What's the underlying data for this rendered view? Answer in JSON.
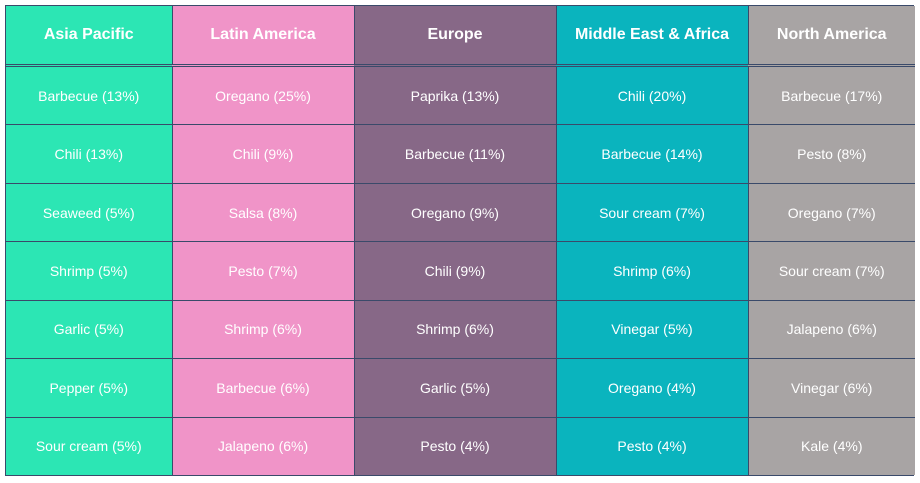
{
  "chart_data": {
    "type": "table",
    "columns": [
      {
        "name": "Asia Pacific",
        "color": "#2ce6b4"
      },
      {
        "name": "Latin America",
        "color": "#f094c8"
      },
      {
        "name": "Europe",
        "color": "#876887"
      },
      {
        "name": "Middle East & Africa",
        "color": "#0ab4be"
      },
      {
        "name": "North America",
        "color": "#a8a4a4"
      }
    ],
    "rows": [
      [
        "Barbecue (13%)",
        "Oregano (25%)",
        "Paprika (13%)",
        "Chili (20%)",
        "Barbecue (17%)"
      ],
      [
        "Chili (13%)",
        "Chili (9%)",
        "Barbecue (11%)",
        "Barbecue (14%)",
        "Pesto (8%)"
      ],
      [
        "Seaweed (5%)",
        "Salsa (8%)",
        "Oregano (9%)",
        "Sour cream (7%)",
        "Oregano (7%)"
      ],
      [
        "Shrimp (5%)",
        "Pesto (7%)",
        "Chili (9%)",
        "Shrimp (6%)",
        "Sour cream (7%)"
      ],
      [
        "Garlic (5%)",
        "Shrimp (6%)",
        "Shrimp (6%)",
        "Vinegar (5%)",
        "Jalapeno (6%)"
      ],
      [
        "Pepper (5%)",
        "Barbecue (6%)",
        "Garlic (5%)",
        "Oregano (4%)",
        "Vinegar (6%)"
      ],
      [
        "Sour cream (5%)",
        "Jalapeno (6%)",
        "Pesto (4%)",
        "Pesto (4%)",
        "Kale (4%)"
      ]
    ]
  }
}
